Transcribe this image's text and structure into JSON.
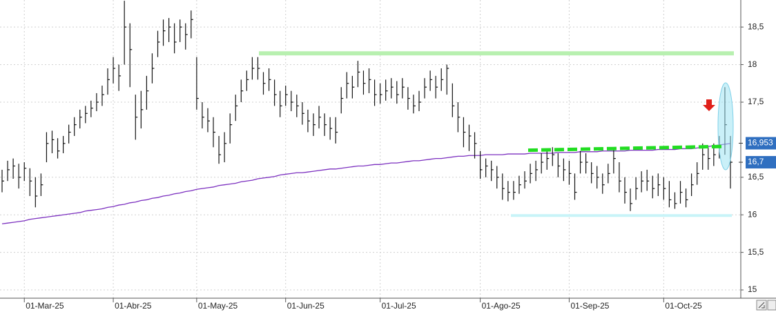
{
  "chart_data": {
    "type": "ohlc",
    "categories": [
      null,
      null,
      null,
      null,
      "01-Mar-25",
      null,
      null,
      null,
      null,
      null,
      null,
      null,
      null,
      null,
      null,
      null,
      null,
      null,
      null,
      null,
      "01-Abr-25",
      null,
      null,
      null,
      null,
      null,
      null,
      null,
      null,
      null,
      null,
      null,
      null,
      null,
      null,
      "01-May-25",
      null,
      null,
      null,
      null,
      null,
      null,
      null,
      null,
      null,
      null,
      null,
      null,
      null,
      null,
      null,
      "01-Jun-25",
      null,
      null,
      null,
      null,
      null,
      null,
      null,
      null,
      null,
      null,
      null,
      null,
      null,
      null,
      null,
      null,
      "01-Jul-25",
      null,
      null,
      null,
      null,
      null,
      null,
      null,
      null,
      null,
      null,
      null,
      null,
      null,
      null,
      null,
      null,
      null,
      "01-Ago-25",
      null,
      null,
      null,
      null,
      null,
      null,
      null,
      null,
      null,
      null,
      null,
      null,
      null,
      null,
      null,
      "01-Sep-25",
      null,
      null,
      null,
      null,
      null,
      null,
      null,
      null,
      null,
      null,
      null,
      null,
      null,
      null,
      null,
      null,
      "01-Oct-25",
      null,
      null,
      null,
      null,
      null,
      null,
      null,
      null,
      null,
      null,
      null,
      null
    ],
    "high": [
      16.6,
      16.72,
      16.75,
      16.68,
      16.7,
      16.62,
      16.5,
      16.55,
      17.1,
      17.12,
      17.02,
      17.05,
      17.2,
      17.3,
      17.4,
      17.45,
      17.52,
      17.62,
      17.72,
      17.95,
      18.1,
      18.0,
      18.85,
      18.55,
      17.6,
      17.65,
      17.85,
      18.15,
      18.45,
      18.6,
      18.62,
      18.55,
      18.6,
      18.55,
      18.72,
      18.1,
      17.5,
      17.42,
      17.3,
      17.05,
      17.1,
      17.35,
      17.6,
      17.8,
      17.92,
      18.1,
      18.1,
      17.9,
      17.95,
      17.8,
      17.65,
      17.72,
      17.65,
      17.6,
      17.5,
      17.4,
      17.35,
      17.45,
      17.35,
      17.3,
      17.3,
      17.7,
      17.9,
      17.85,
      18.05,
      17.92,
      17.95,
      17.8,
      17.75,
      17.8,
      17.82,
      17.78,
      17.82,
      17.7,
      17.6,
      17.65,
      17.82,
      17.92,
      17.85,
      17.95,
      18.0,
      17.75,
      17.5,
      17.3,
      17.2,
      17.1,
      16.85,
      16.75,
      16.72,
      16.65,
      16.55,
      16.45,
      16.45,
      16.52,
      16.58,
      16.68,
      16.72,
      16.82,
      16.88,
      16.9,
      16.82,
      16.75,
      16.72,
      16.55,
      16.85,
      16.82,
      16.7,
      16.65,
      16.55,
      16.68,
      16.88,
      16.7,
      16.5,
      16.35,
      16.5,
      16.58,
      16.6,
      16.52,
      16.55,
      16.5,
      16.45,
      16.3,
      16.45,
      16.35,
      16.55,
      16.7,
      16.95,
      16.9,
      16.95,
      17.05,
      17.7,
      17.05
    ],
    "low": [
      16.3,
      16.45,
      16.48,
      16.35,
      16.45,
      16.25,
      16.1,
      16.25,
      16.7,
      16.82,
      16.75,
      16.82,
      16.95,
      17.05,
      17.15,
      17.22,
      17.3,
      17.38,
      17.45,
      17.6,
      17.75,
      17.65,
      18.0,
      17.7,
      17.0,
      17.15,
      17.4,
      17.75,
      18.1,
      18.25,
      18.3,
      18.15,
      18.3,
      18.2,
      18.35,
      17.4,
      17.15,
      17.1,
      16.9,
      16.68,
      16.7,
      16.95,
      17.25,
      17.5,
      17.65,
      17.8,
      17.8,
      17.6,
      17.65,
      17.45,
      17.3,
      17.45,
      17.38,
      17.3,
      17.2,
      17.1,
      17.05,
      17.15,
      17.05,
      17.0,
      16.95,
      17.35,
      17.55,
      17.55,
      17.7,
      17.6,
      17.62,
      17.45,
      17.48,
      17.52,
      17.55,
      17.48,
      17.55,
      17.4,
      17.35,
      17.38,
      17.55,
      17.65,
      17.55,
      17.65,
      17.6,
      17.3,
      17.1,
      16.9,
      16.85,
      16.75,
      16.48,
      16.5,
      16.45,
      16.35,
      16.2,
      16.18,
      16.2,
      16.28,
      16.35,
      16.42,
      16.45,
      16.55,
      16.6,
      16.65,
      16.5,
      16.45,
      16.4,
      16.2,
      16.55,
      16.55,
      16.42,
      16.35,
      16.28,
      16.42,
      16.55,
      16.3,
      16.15,
      16.05,
      16.2,
      16.3,
      16.32,
      16.22,
      16.25,
      16.2,
      16.1,
      16.08,
      16.15,
      16.1,
      16.25,
      16.4,
      16.6,
      16.6,
      16.65,
      16.75,
      16.8,
      16.35
    ],
    "close": [
      16.45,
      16.6,
      16.65,
      16.5,
      16.62,
      16.45,
      16.25,
      16.4,
      16.95,
      17.0,
      16.85,
      16.95,
      17.1,
      17.2,
      17.3,
      17.35,
      17.42,
      17.5,
      17.6,
      17.8,
      17.95,
      17.85,
      18.5,
      18.2,
      17.3,
      17.4,
      17.65,
      17.95,
      18.3,
      18.45,
      18.5,
      18.3,
      18.5,
      18.4,
      18.6,
      17.55,
      17.3,
      17.25,
      17.1,
      16.8,
      16.95,
      17.2,
      17.45,
      17.65,
      17.8,
      17.95,
      17.95,
      17.75,
      17.8,
      17.6,
      17.45,
      17.6,
      17.5,
      17.45,
      17.35,
      17.25,
      17.2,
      17.3,
      17.2,
      17.15,
      17.1,
      17.55,
      17.75,
      17.7,
      17.9,
      17.75,
      17.8,
      17.6,
      17.6,
      17.65,
      17.7,
      17.6,
      17.7,
      17.55,
      17.45,
      17.5,
      17.7,
      17.8,
      17.7,
      17.8,
      17.95,
      17.45,
      17.3,
      17.1,
      17.05,
      16.95,
      16.6,
      16.65,
      16.6,
      16.5,
      16.35,
      16.3,
      16.3,
      16.4,
      16.45,
      16.55,
      16.6,
      16.7,
      16.75,
      16.8,
      16.65,
      16.6,
      16.55,
      16.3,
      16.7,
      16.7,
      16.55,
      16.5,
      16.4,
      16.55,
      16.75,
      16.45,
      16.3,
      16.15,
      16.35,
      16.45,
      16.45,
      16.35,
      16.4,
      16.35,
      16.2,
      16.15,
      16.3,
      16.2,
      16.4,
      16.55,
      16.8,
      16.75,
      16.8,
      16.9,
      17.2,
      16.7
    ],
    "bar_color": "#111111",
    "moving_average": {
      "color": "#7b2fbf",
      "values": [
        15.88,
        15.89,
        15.9,
        15.91,
        15.92,
        15.94,
        15.95,
        15.96,
        15.97,
        15.98,
        15.99,
        16.0,
        16.01,
        16.02,
        16.03,
        16.05,
        16.06,
        16.07,
        16.08,
        16.1,
        16.11,
        16.13,
        16.14,
        16.16,
        16.17,
        16.19,
        16.2,
        16.22,
        16.23,
        16.25,
        16.26,
        16.28,
        16.29,
        16.31,
        16.32,
        16.34,
        16.35,
        16.36,
        16.37,
        16.39,
        16.4,
        16.41,
        16.42,
        16.44,
        16.45,
        16.46,
        16.48,
        16.49,
        16.5,
        16.51,
        16.53,
        16.54,
        16.55,
        16.56,
        16.56,
        16.57,
        16.58,
        16.59,
        16.6,
        16.61,
        16.61,
        16.62,
        16.63,
        16.64,
        16.65,
        16.65,
        16.66,
        16.67,
        16.67,
        16.68,
        16.69,
        16.69,
        16.7,
        16.71,
        16.72,
        16.72,
        16.73,
        16.74,
        16.75,
        16.75,
        16.76,
        16.77,
        16.78,
        16.78,
        16.79,
        16.79,
        16.79,
        16.8,
        16.8,
        16.8,
        16.8,
        16.81,
        16.81,
        16.81,
        16.81,
        16.82,
        16.82,
        16.82,
        16.82,
        16.82,
        16.83,
        16.83,
        16.83,
        16.83,
        16.84,
        16.84,
        16.84,
        16.84,
        16.85,
        16.85,
        16.85,
        16.85,
        16.85,
        16.86,
        16.86,
        16.86,
        16.86,
        16.86,
        16.87,
        16.87,
        16.87,
        16.87,
        16.88,
        16.88,
        16.88,
        16.89,
        16.9,
        16.91,
        16.92,
        16.93,
        16.94,
        16.95
      ]
    },
    "resistance": {
      "value": 18.15,
      "color": "#b8f0b0"
    },
    "trendline": {
      "values": [
        16.86,
        16.91
      ],
      "color": "#22dd22"
    },
    "support": {
      "value": 15.99,
      "color": "#c8f4f8"
    },
    "ylim": [
      14.89,
      18.86
    ],
    "yticks": [
      15,
      {
        "value": 15.5,
        "label": "15,5"
      },
      16,
      {
        "value": 16.5,
        "label": "16,5"
      },
      {
        "value": 17.5,
        "label": "17,5"
      },
      18,
      {
        "value": 18.5,
        "label": "18,5"
      }
    ],
    "price_labels": [
      {
        "value": 16.953,
        "label": "16,953"
      },
      {
        "value": 16.7,
        "label": "16,7"
      }
    ],
    "grid": true
  }
}
